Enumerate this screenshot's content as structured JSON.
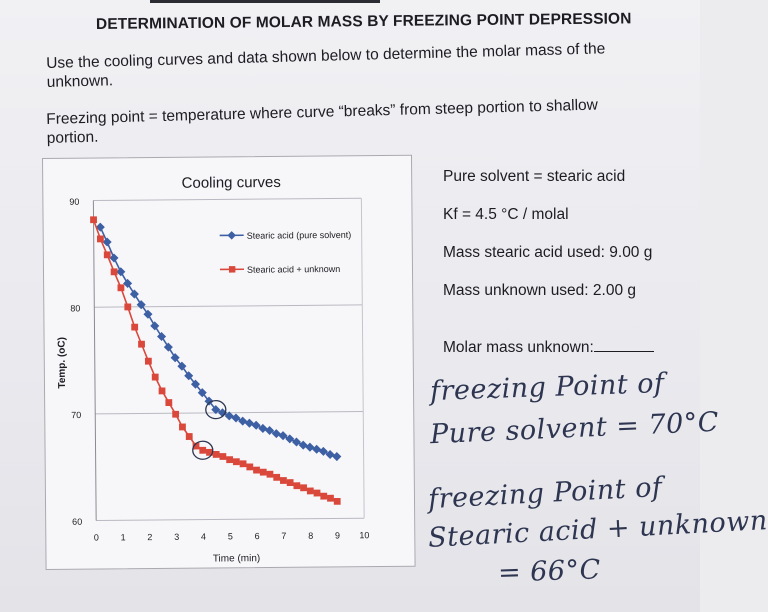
{
  "title": "DETERMINATION OF MOLAR MASS BY FREEZING POINT DEPRESSION",
  "instructions": "Use the cooling curves and data shown below to determine the molar mass of the unknown.",
  "definition": "Freezing point = temperature where curve “breaks” from steep portion to shallow portion.",
  "info": {
    "solvent": "Pure solvent = stearic acid",
    "kf": "Kf = 4.5 °C / molal",
    "mass_stearic": "Mass stearic acid used: 9.00 g",
    "mass_unknown": "Mass unknown used: 2.00 g",
    "molar_mass_label": "Molar mass unknown:"
  },
  "handwriting": {
    "line1": "freezing Point of",
    "line2": "Pure solvent = 70°C",
    "line3": "freezing Point of",
    "line4": "Stearic acid + unknown",
    "line5": "= 66°C"
  },
  "chart_data": {
    "type": "line",
    "title": "Cooling curves",
    "xlabel": "Time (min)",
    "ylabel": "Temp. (oC)",
    "xlim": [
      0,
      10
    ],
    "ylim": [
      60,
      90
    ],
    "xticks": [
      "0",
      "1",
      "2",
      "3",
      "4",
      "5",
      "6",
      "7",
      "8",
      "9",
      "10"
    ],
    "yticks": [
      "60",
      "70",
      "80",
      "90"
    ],
    "grid": true,
    "legend_position": "top-right",
    "colors": {
      "solvent": "#3d5fa3",
      "solution": "#d9483b"
    },
    "series": [
      {
        "name": "Stearic acid (pure solvent)",
        "x": [
          0.25,
          0.5,
          0.75,
          1.0,
          1.25,
          1.5,
          1.75,
          2.0,
          2.25,
          2.5,
          2.75,
          3.0,
          3.25,
          3.5,
          3.75,
          4.0,
          4.25,
          4.5,
          4.75,
          5.0,
          5.25,
          5.5,
          5.75,
          6.0,
          6.25,
          6.5,
          6.75,
          7.0,
          7.25,
          7.5,
          7.75,
          8.0,
          8.25,
          8.5,
          8.75,
          9.0
        ],
        "values": [
          87.5,
          86.1,
          84.6,
          83.3,
          82.2,
          81.2,
          80.2,
          79.3,
          78.2,
          77.2,
          76.2,
          75.2,
          74.4,
          73.5,
          72.7,
          71.9,
          71.1,
          70.3,
          70.0,
          69.7,
          69.5,
          69.2,
          69.0,
          68.8,
          68.5,
          68.3,
          68.0,
          67.8,
          67.5,
          67.2,
          66.9,
          66.7,
          66.5,
          66.3,
          66.0,
          65.8
        ]
      },
      {
        "name": "Stearic acid + unknown",
        "x": [
          0.0,
          0.25,
          0.5,
          0.75,
          1.0,
          1.25,
          1.5,
          1.75,
          2.0,
          2.25,
          2.5,
          2.75,
          3.0,
          3.25,
          3.5,
          3.75,
          4.0,
          4.25,
          4.5,
          4.75,
          5.0,
          5.25,
          5.5,
          5.75,
          6.0,
          6.25,
          6.5,
          6.75,
          7.0,
          7.25,
          7.5,
          7.75,
          8.0,
          8.25,
          8.5,
          8.75,
          9.0
        ],
        "values": [
          88.2,
          86.4,
          84.9,
          83.3,
          81.8,
          80.0,
          78.1,
          76.5,
          74.9,
          73.4,
          72.1,
          71.0,
          69.9,
          68.7,
          67.8,
          66.9,
          66.5,
          66.3,
          66.1,
          65.9,
          65.6,
          65.4,
          65.2,
          64.9,
          64.6,
          64.4,
          64.2,
          63.9,
          63.6,
          63.4,
          63.1,
          62.9,
          62.6,
          62.4,
          62.1,
          61.9,
          61.6
        ]
      }
    ]
  }
}
